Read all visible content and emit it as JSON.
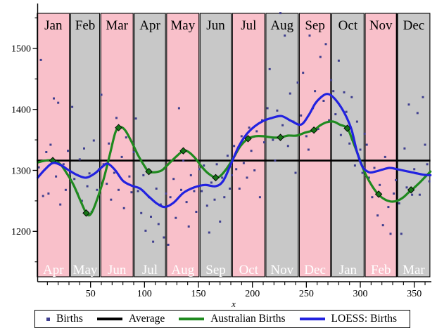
{
  "chart_data": {
    "type": "scatter",
    "title": "",
    "xlabel": "x",
    "ylabel": "",
    "grid": false,
    "legend_position": "bottom",
    "x_axis": {
      "range": [
        0,
        365
      ],
      "major_ticks": [
        50,
        100,
        150,
        200,
        250,
        300,
        350
      ],
      "minor_tick_step": 10
    },
    "y_axis": {
      "range": [
        1117,
        1574
      ],
      "major_ticks": [
        1200,
        1300,
        1400,
        1500
      ],
      "minor_ticks": [
        1150,
        1250,
        1350,
        1450,
        1550
      ]
    },
    "bands": {
      "boundaries": [
        0,
        31,
        59,
        90,
        120,
        151,
        181,
        212,
        243,
        273,
        304,
        334,
        365
      ],
      "top_labels": [
        "Jan",
        "Feb",
        "Mar",
        "Apr",
        "May",
        "Jun",
        "Jul",
        "Aug",
        "Sep",
        "Oct",
        "Nov",
        "Dec"
      ],
      "bottom_labels": [
        "Apr",
        "May",
        "Jun",
        "Jul",
        "Aug",
        "Sep",
        "Oct",
        "Nov",
        "Dec",
        "Jan",
        "Feb",
        "Mar"
      ],
      "odd_color": "#f9c0ca",
      "even_color": "#c8c8c8",
      "thick_boundary_day": 334,
      "top_label_color": "#000000",
      "bottom_label_color": "#ffffff"
    },
    "average": {
      "name": "Average",
      "value": 1316,
      "color": "#000000"
    },
    "series": [
      {
        "name": "Births",
        "type": "scatter",
        "color": "#3f3f8f",
        "points": [
          [
            2,
            1305
          ],
          [
            4,
            1481
          ],
          [
            6,
            1258
          ],
          [
            9,
            1330
          ],
          [
            11,
            1262
          ],
          [
            13,
            1342
          ],
          [
            16,
            1418
          ],
          [
            18,
            1290
          ],
          [
            20,
            1411
          ],
          [
            22,
            1244
          ],
          [
            25,
            1310
          ],
          [
            27,
            1268
          ],
          [
            29,
            1332
          ],
          [
            31,
            1294
          ],
          [
            33,
            1404
          ],
          [
            35,
            1286
          ],
          [
            38,
            1262
          ],
          [
            40,
            1318
          ],
          [
            42,
            1250
          ],
          [
            44,
            1336
          ],
          [
            47,
            1274
          ],
          [
            49,
            1295
          ],
          [
            51,
            1232
          ],
          [
            53,
            1349
          ],
          [
            56,
            1268
          ],
          [
            58,
            1302
          ],
          [
            60,
            1424
          ],
          [
            62,
            1310
          ],
          [
            65,
            1278
          ],
          [
            67,
            1344
          ],
          [
            69,
            1252
          ],
          [
            72,
            1296
          ],
          [
            74,
            1386
          ],
          [
            76,
            1268
          ],
          [
            79,
            1322
          ],
          [
            81,
            1238
          ],
          [
            83,
            1354
          ],
          [
            86,
            1290
          ],
          [
            88,
            1264
          ],
          [
            90,
            1330
          ],
          [
            92,
            1385
          ],
          [
            94,
            1266
          ],
          [
            97,
            1230
          ],
          [
            99,
            1292
          ],
          [
            101,
            1201
          ],
          [
            104,
            1256
          ],
          [
            106,
            1224
          ],
          [
            108,
            1183
          ],
          [
            111,
            1270
          ],
          [
            113,
            1212
          ],
          [
            115,
            1244
          ],
          [
            118,
            1190
          ],
          [
            120,
            1262
          ],
          [
            122,
            1178
          ],
          [
            124,
            1256
          ],
          [
            127,
            1286
          ],
          [
            129,
            1222
          ],
          [
            132,
            1402
          ],
          [
            134,
            1268
          ],
          [
            136,
            1316
          ],
          [
            139,
            1248
          ],
          [
            141,
            1208
          ],
          [
            143,
            1292
          ],
          [
            146,
            1266
          ],
          [
            148,
            1232
          ],
          [
            151,
            1302
          ],
          [
            153,
            1266
          ],
          [
            155,
            1308
          ],
          [
            158,
            1242
          ],
          [
            160,
            1198
          ],
          [
            162,
            1280
          ],
          [
            165,
            1252
          ],
          [
            167,
            1310
          ],
          [
            170,
            1216
          ],
          [
            172,
            1288
          ],
          [
            174,
            1256
          ],
          [
            177,
            1324
          ],
          [
            179,
            1270
          ],
          [
            181,
            1292
          ],
          [
            183,
            1340
          ],
          [
            185,
            1302
          ],
          [
            188,
            1270
          ],
          [
            190,
            1356
          ],
          [
            192,
            1312
          ],
          [
            195,
            1288
          ],
          [
            197,
            1370
          ],
          [
            199,
            1332
          ],
          [
            202,
            1300
          ],
          [
            204,
            1364
          ],
          [
            207,
            1256
          ],
          [
            209,
            1382
          ],
          [
            211,
            1346
          ],
          [
            214,
            1402
          ],
          [
            216,
            1466
          ],
          [
            219,
            1350
          ],
          [
            221,
            1316
          ],
          [
            223,
            1398
          ],
          [
            226,
            1558
          ],
          [
            228,
            1374
          ],
          [
            230,
            1521
          ],
          [
            233,
            1340
          ],
          [
            235,
            1426
          ],
          [
            238,
            1380
          ],
          [
            240,
            1296
          ],
          [
            242,
            1444
          ],
          [
            245,
            1390
          ],
          [
            247,
            1460
          ],
          [
            250,
            1356
          ],
          [
            252,
            1334
          ],
          [
            253,
            1521
          ],
          [
            256,
            1402
          ],
          [
            258,
            1430
          ],
          [
            261,
            1368
          ],
          [
            263,
            1486
          ],
          [
            266,
            1414
          ],
          [
            268,
            1507
          ],
          [
            271,
            1382
          ],
          [
            273,
            1448
          ],
          [
            275,
            1430
          ],
          [
            277,
            1392
          ],
          [
            280,
            1480
          ],
          [
            282,
            1358
          ],
          [
            285,
            1428
          ],
          [
            287,
            1396
          ],
          [
            290,
            1344
          ],
          [
            292,
            1420
          ],
          [
            295,
            1308
          ],
          [
            297,
            1380
          ],
          [
            300,
            1334
          ],
          [
            302,
            1296
          ],
          [
            304,
            1360
          ],
          [
            306,
            1342
          ],
          [
            308,
            1288
          ],
          [
            311,
            1256
          ],
          [
            313,
            1304
          ],
          [
            316,
            1226
          ],
          [
            318,
            1276
          ],
          [
            321,
            1210
          ],
          [
            323,
            1322
          ],
          [
            326,
            1240
          ],
          [
            328,
            1196
          ],
          [
            331,
            1262
          ],
          [
            333,
            1284
          ],
          [
            336,
            1246
          ],
          [
            338,
            1196
          ],
          [
            341,
            1336
          ],
          [
            343,
            1272
          ],
          [
            345,
            1408
          ],
          [
            348,
            1260
          ],
          [
            350,
            1302
          ],
          [
            353,
            1394
          ],
          [
            355,
            1260
          ],
          [
            358,
            1420
          ],
          [
            360,
            1342
          ],
          [
            362,
            1310
          ],
          [
            364,
            1282
          ]
        ]
      },
      {
        "name": "Australian Births",
        "type": "line",
        "color": "#1f8a1f",
        "marker": "diamond",
        "points": [
          [
            1,
            1313
          ],
          [
            8,
            1316
          ],
          [
            15,
            1316
          ],
          [
            22,
            1310
          ],
          [
            28,
            1295
          ],
          [
            34,
            1277
          ],
          [
            40,
            1253
          ],
          [
            46,
            1230
          ],
          [
            50,
            1228
          ],
          [
            55,
            1247
          ],
          [
            62,
            1285
          ],
          [
            68,
            1327
          ],
          [
            73,
            1362
          ],
          [
            77,
            1371
          ],
          [
            82,
            1366
          ],
          [
            88,
            1347
          ],
          [
            94,
            1325
          ],
          [
            100,
            1307
          ],
          [
            104,
            1298
          ],
          [
            110,
            1297
          ],
          [
            116,
            1300
          ],
          [
            122,
            1310
          ],
          [
            129,
            1322
          ],
          [
            136,
            1332
          ],
          [
            141,
            1330
          ],
          [
            147,
            1320
          ],
          [
            153,
            1306
          ],
          [
            159,
            1295
          ],
          [
            166,
            1288
          ],
          [
            171,
            1292
          ],
          [
            177,
            1305
          ],
          [
            183,
            1322
          ],
          [
            189,
            1340
          ],
          [
            196,
            1352
          ],
          [
            203,
            1356
          ],
          [
            210,
            1356
          ],
          [
            218,
            1354
          ],
          [
            226,
            1354
          ],
          [
            233,
            1357
          ],
          [
            241,
            1357
          ],
          [
            249,
            1362
          ],
          [
            257,
            1366
          ],
          [
            263,
            1374
          ],
          [
            269,
            1379
          ],
          [
            275,
            1380
          ],
          [
            281,
            1375
          ],
          [
            288,
            1369
          ],
          [
            293,
            1348
          ],
          [
            298,
            1325
          ],
          [
            304,
            1297
          ],
          [
            310,
            1277
          ],
          [
            316,
            1262
          ],
          [
            322,
            1253
          ],
          [
            328,
            1249
          ],
          [
            334,
            1250
          ],
          [
            340,
            1256
          ],
          [
            346,
            1266
          ],
          [
            349,
            1270
          ],
          [
            355,
            1280
          ],
          [
            360,
            1289
          ],
          [
            365,
            1298
          ]
        ],
        "monthly_markers": [
          [
            15,
            1316
          ],
          [
            46,
            1230
          ],
          [
            76,
            1370
          ],
          [
            104,
            1298
          ],
          [
            136,
            1332
          ],
          [
            166,
            1288
          ],
          [
            196,
            1352
          ],
          [
            226,
            1354
          ],
          [
            257,
            1366
          ],
          [
            288,
            1369
          ],
          [
            317,
            1261
          ],
          [
            347,
            1268
          ]
        ]
      },
      {
        "name": "LOESS: Births",
        "type": "line",
        "color": "#2222e0",
        "points": [
          [
            1,
            1288
          ],
          [
            8,
            1302
          ],
          [
            15,
            1312
          ],
          [
            22,
            1309
          ],
          [
            30,
            1300
          ],
          [
            38,
            1292
          ],
          [
            46,
            1288
          ],
          [
            54,
            1295
          ],
          [
            61,
            1306
          ],
          [
            66,
            1311
          ],
          [
            73,
            1300
          ],
          [
            80,
            1283
          ],
          [
            88,
            1275
          ],
          [
            96,
            1270
          ],
          [
            104,
            1257
          ],
          [
            112,
            1245
          ],
          [
            119,
            1240
          ],
          [
            127,
            1247
          ],
          [
            136,
            1263
          ],
          [
            146,
            1272
          ],
          [
            156,
            1276
          ],
          [
            166,
            1274
          ],
          [
            173,
            1283
          ],
          [
            180,
            1310
          ],
          [
            187,
            1338
          ],
          [
            194,
            1358
          ],
          [
            202,
            1372
          ],
          [
            210,
            1381
          ],
          [
            218,
            1386
          ],
          [
            227,
            1389
          ],
          [
            236,
            1381
          ],
          [
            245,
            1375
          ],
          [
            252,
            1390
          ],
          [
            258,
            1409
          ],
          [
            263,
            1419
          ],
          [
            268,
            1425
          ],
          [
            272,
            1424
          ],
          [
            277,
            1416
          ],
          [
            282,
            1404
          ],
          [
            287,
            1388
          ],
          [
            292,
            1366
          ],
          [
            297,
            1330
          ],
          [
            302,
            1306
          ],
          [
            308,
            1297
          ],
          [
            314,
            1298
          ],
          [
            320,
            1301
          ],
          [
            327,
            1304
          ],
          [
            334,
            1302
          ],
          [
            342,
            1299
          ],
          [
            350,
            1296
          ],
          [
            358,
            1293
          ],
          [
            365,
            1292
          ]
        ]
      }
    ],
    "legend": {
      "items": [
        {
          "label": "Births",
          "swatch": "point",
          "color": "#3f3f8f"
        },
        {
          "label": "Average",
          "swatch": "line",
          "color": "#000000"
        },
        {
          "label": "Australian Births",
          "swatch": "line",
          "color": "#1f8a1f"
        },
        {
          "label": "LOESS: Births",
          "swatch": "line",
          "color": "#2222e0"
        }
      ]
    }
  }
}
